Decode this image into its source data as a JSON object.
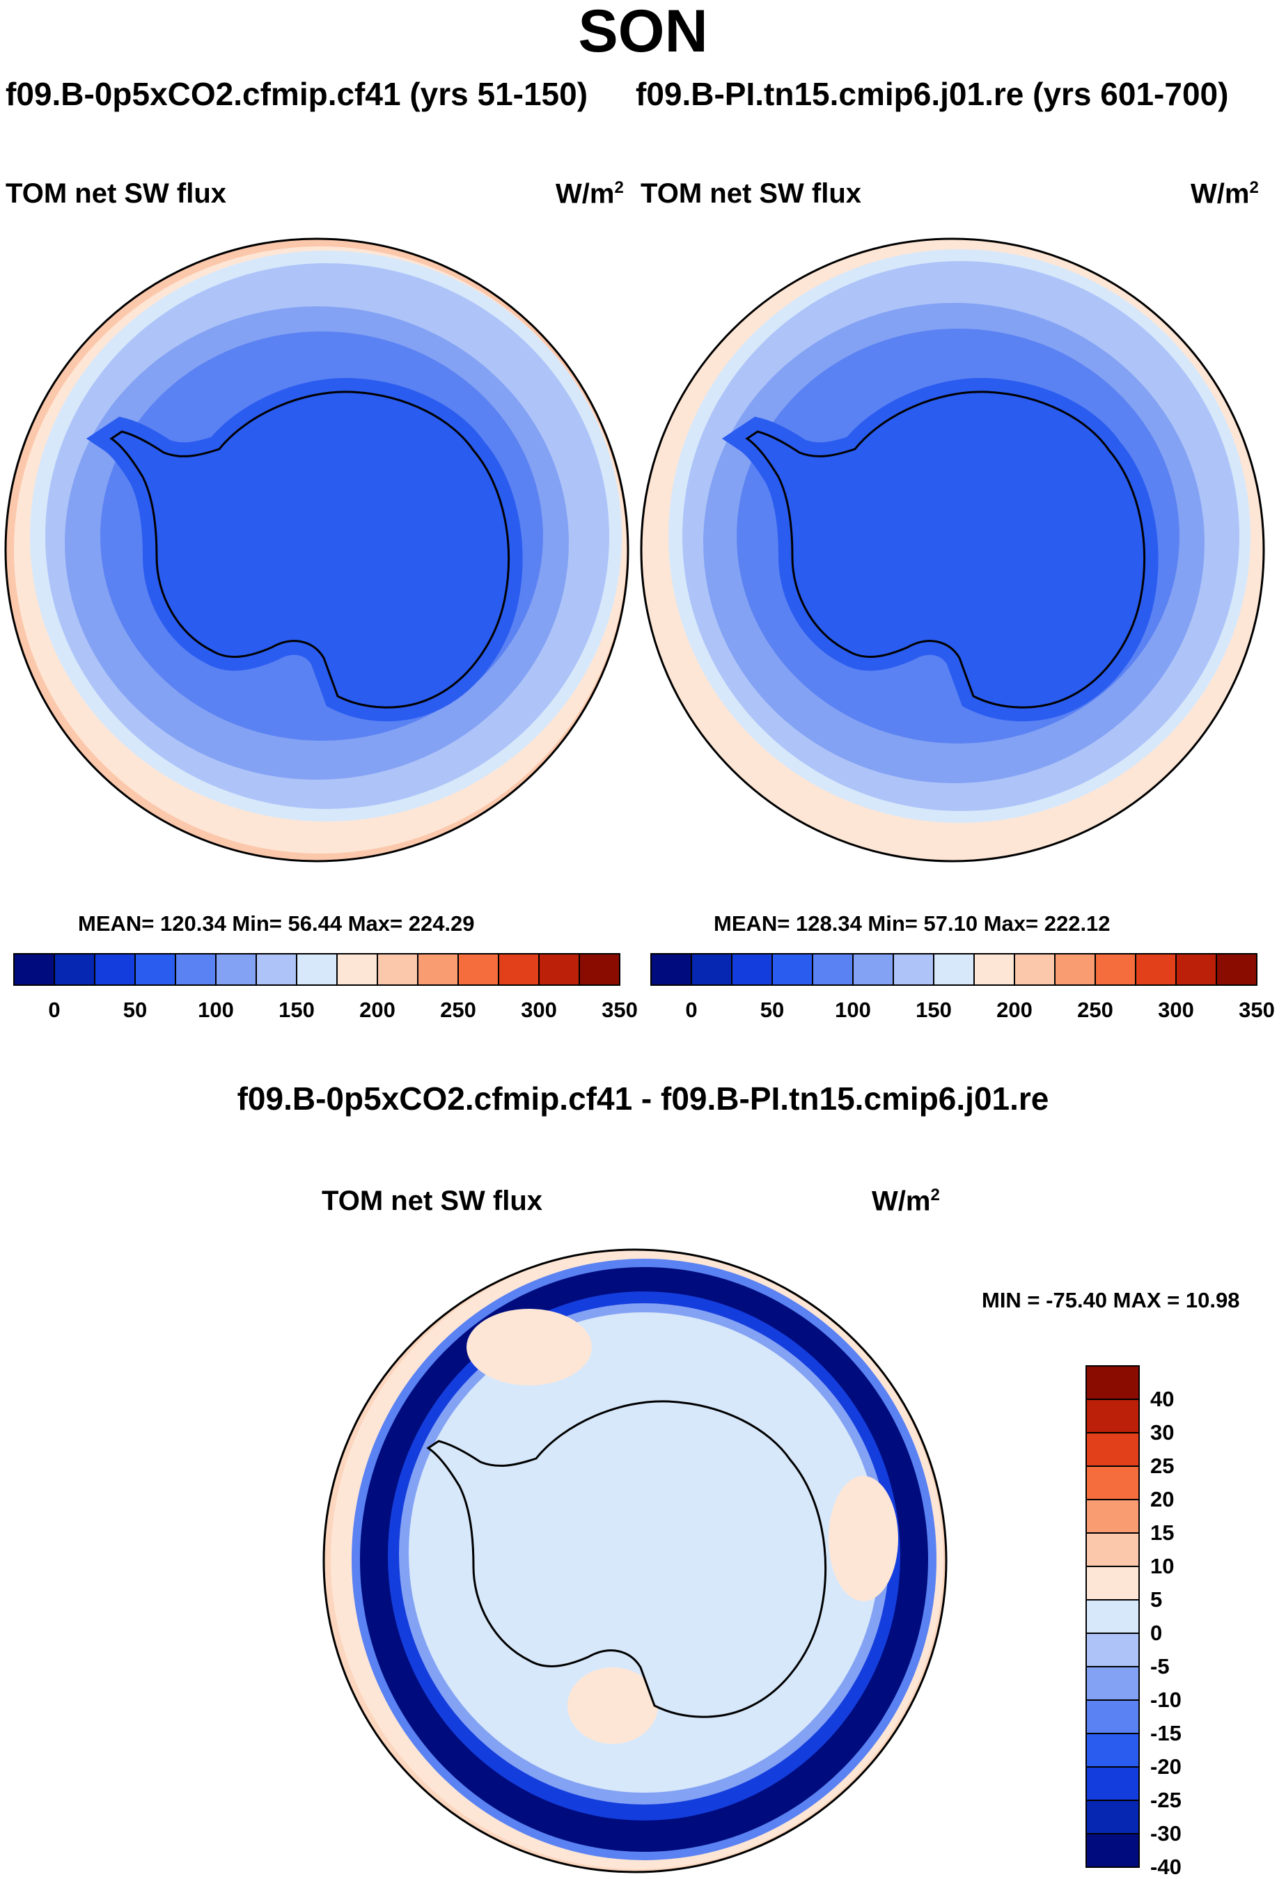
{
  "figure": {
    "title": "SON",
    "left_case": "f09.B-0p5xCO2.cfmip.cf41 (yrs 51-150)",
    "right_case": "f09.B-PI.tn15.cmip6.j01.re (yrs 601-700)",
    "diff_case": "f09.B-0p5xCO2.cfmip.cf41 - f09.B-PI.tn15.cmip6.j01.re"
  },
  "panels": {
    "left": {
      "variable": "TOM net SW flux",
      "units_base": "W/m",
      "units_exp": "2",
      "stats": "MEAN= 120.34  Min=  56.44  Max= 224.29"
    },
    "right": {
      "variable": "TOM net SW flux",
      "units_base": "W/m",
      "units_exp": "2",
      "stats": "MEAN= 128.34  Min=  57.10  Max= 222.12"
    },
    "diff": {
      "variable": "TOM net SW flux",
      "units_base": "W/m",
      "units_exp": "2",
      "stats": "MIN = -75.40 MAX =  10.98"
    }
  },
  "colorbars": {
    "abs": {
      "colors": [
        "#000c7d",
        "#0627b1",
        "#143ddd",
        "#2a5cf0",
        "#5b82f2",
        "#84a2f4",
        "#aec4f8",
        "#d7e8fb",
        "#fde6d6",
        "#fcc8ac",
        "#f99c72",
        "#f56d3c",
        "#e2401a",
        "#bc2008",
        "#8a0b00"
      ],
      "labels": [
        "0",
        "50",
        "100",
        "150",
        "200",
        "250",
        "300",
        "350"
      ]
    },
    "diff": {
      "colors_top_to_bottom": [
        "#8a0b00",
        "#bc2008",
        "#e2401a",
        "#f56d3c",
        "#f99c72",
        "#fcc8ac",
        "#fde6d6",
        "#d7e8fb",
        "#aec4f8",
        "#84a2f4",
        "#5b82f2",
        "#2a5cf0",
        "#143ddd",
        "#0627b1",
        "#000c7d"
      ],
      "labels": [
        "40",
        "30",
        "25",
        "20",
        "15",
        "10",
        "5",
        "0",
        "-5",
        "-10",
        "-15",
        "-20",
        "-25",
        "-30",
        "-40"
      ]
    }
  }
}
